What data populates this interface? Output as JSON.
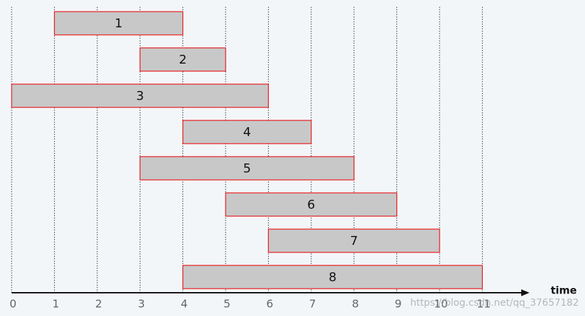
{
  "chart_data": {
    "type": "gantt",
    "categories": [
      "1",
      "2",
      "3",
      "4",
      "5",
      "6",
      "7",
      "8"
    ],
    "start": [
      1,
      3,
      0,
      4,
      3,
      5,
      6,
      4
    ],
    "end": [
      4,
      5,
      6,
      7,
      8,
      9,
      10,
      11
    ],
    "color": "#c8c8c8",
    "edge_color": "#e8191c",
    "xlabel": "time",
    "xlim": [
      0,
      12.1
    ],
    "xticks": [
      0,
      1,
      2,
      3,
      4,
      5,
      6,
      7,
      8,
      9,
      10,
      11
    ],
    "grid": true,
    "watermark": "https://blog.csdn.net/qq_37657182"
  }
}
